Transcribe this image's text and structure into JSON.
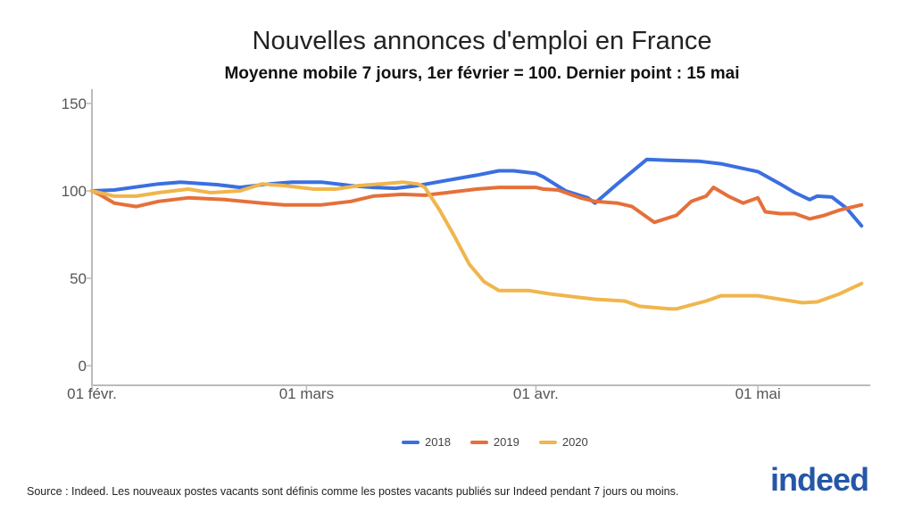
{
  "chart_data": {
    "type": "line",
    "title": "Nouvelles annonces d'emploi en France",
    "subtitle": "Moyenne mobile 7 jours, 1er février = 100. Dernier point : 15 mai",
    "xlabel": "",
    "ylabel": "",
    "ylim": [
      0,
      150
    ],
    "yticks": [
      "0",
      "50",
      "100",
      "150"
    ],
    "xlim": [
      "02-01",
      "05-15"
    ],
    "xticks": [
      {
        "date": "02-01",
        "label": "01 févr."
      },
      {
        "date": "03-01",
        "label": "01 mars"
      },
      {
        "date": "04-01",
        "label": "01 avr."
      },
      {
        "date": "05-01",
        "label": "01 mai"
      }
    ],
    "grid": false,
    "legend_position": "bottom",
    "series": [
      {
        "name": "2018",
        "color": "#3b6fe0",
        "points": [
          [
            "02-01",
            100
          ],
          [
            "02-04",
            100.5
          ],
          [
            "02-10",
            104
          ],
          [
            "02-13",
            105
          ],
          [
            "02-18",
            103.5
          ],
          [
            "02-21",
            102
          ],
          [
            "02-25",
            104
          ],
          [
            "02-28",
            105
          ],
          [
            "03-03",
            105
          ],
          [
            "03-07",
            103
          ],
          [
            "03-10",
            102
          ],
          [
            "03-13",
            101.5
          ],
          [
            "03-16",
            103
          ],
          [
            "03-20",
            106
          ],
          [
            "03-24",
            109
          ],
          [
            "03-27",
            111.5
          ],
          [
            "03-29",
            111.5
          ],
          [
            "04-01",
            110
          ],
          [
            "04-02",
            108
          ],
          [
            "04-05",
            100
          ],
          [
            "04-08",
            96
          ],
          [
            "04-09",
            93
          ],
          [
            "04-12",
            104
          ],
          [
            "04-16",
            118
          ],
          [
            "04-19",
            117.5
          ],
          [
            "04-23",
            117
          ],
          [
            "04-26",
            115.5
          ],
          [
            "05-01",
            111
          ],
          [
            "05-04",
            104
          ],
          [
            "05-06",
            99
          ],
          [
            "05-08",
            95
          ],
          [
            "05-09",
            97
          ],
          [
            "05-11",
            96.5
          ],
          [
            "05-13",
            90
          ],
          [
            "05-15",
            80
          ]
        ]
      },
      {
        "name": "2019",
        "color": "#e5703a",
        "points": [
          [
            "02-01",
            100
          ],
          [
            "02-02",
            98
          ],
          [
            "02-04",
            93
          ],
          [
            "02-07",
            91
          ],
          [
            "02-10",
            94
          ],
          [
            "02-14",
            96
          ],
          [
            "02-19",
            95
          ],
          [
            "02-24",
            93
          ],
          [
            "02-27",
            92
          ],
          [
            "03-03",
            92
          ],
          [
            "03-07",
            94
          ],
          [
            "03-10",
            97
          ],
          [
            "03-14",
            98
          ],
          [
            "03-17",
            97.5
          ],
          [
            "03-20",
            99
          ],
          [
            "03-24",
            101
          ],
          [
            "03-27",
            102
          ],
          [
            "04-01",
            102
          ],
          [
            "04-02",
            101
          ],
          [
            "04-04",
            100.5
          ],
          [
            "04-07",
            96
          ],
          [
            "04-09",
            94
          ],
          [
            "04-12",
            93
          ],
          [
            "04-14",
            91
          ],
          [
            "04-17",
            82
          ],
          [
            "04-20",
            86
          ],
          [
            "04-22",
            94
          ],
          [
            "04-24",
            97
          ],
          [
            "04-25",
            102
          ],
          [
            "04-27",
            97
          ],
          [
            "04-29",
            93
          ],
          [
            "05-01",
            96
          ],
          [
            "05-02",
            88
          ],
          [
            "05-04",
            87
          ],
          [
            "05-06",
            87
          ],
          [
            "05-08",
            84
          ],
          [
            "05-10",
            86
          ],
          [
            "05-12",
            89
          ],
          [
            "05-15",
            92
          ]
        ]
      },
      {
        "name": "2020",
        "color": "#f0b54c",
        "points": [
          [
            "02-01",
            100
          ],
          [
            "02-04",
            97
          ],
          [
            "02-07",
            97
          ],
          [
            "02-10",
            99
          ],
          [
            "02-14",
            101
          ],
          [
            "02-17",
            99
          ],
          [
            "02-21",
            100
          ],
          [
            "02-24",
            104
          ],
          [
            "02-27",
            103
          ],
          [
            "03-02",
            101
          ],
          [
            "03-05",
            101
          ],
          [
            "03-08",
            103
          ],
          [
            "03-11",
            104
          ],
          [
            "03-14",
            105
          ],
          [
            "03-16",
            104
          ],
          [
            "03-17",
            102
          ],
          [
            "03-19",
            89
          ],
          [
            "03-21",
            74
          ],
          [
            "03-23",
            58
          ],
          [
            "03-25",
            48
          ],
          [
            "03-27",
            43
          ],
          [
            "03-31",
            43
          ],
          [
            "04-03",
            41
          ],
          [
            "04-07",
            39
          ],
          [
            "04-09",
            38
          ],
          [
            "04-13",
            37
          ],
          [
            "04-15",
            34
          ],
          [
            "04-19",
            32.5
          ],
          [
            "04-20",
            32.5
          ],
          [
            "04-24",
            37
          ],
          [
            "04-26",
            40
          ],
          [
            "05-01",
            40
          ],
          [
            "05-04",
            38
          ],
          [
            "05-07",
            36
          ],
          [
            "05-09",
            36.5
          ],
          [
            "05-12",
            41
          ],
          [
            "05-15",
            47
          ]
        ]
      }
    ]
  },
  "source": "Source : Indeed. Les nouveaux postes vacants sont définis comme les postes vacants publiés sur Indeed pendant 7 jours ou moins.",
  "logo": "indeed"
}
